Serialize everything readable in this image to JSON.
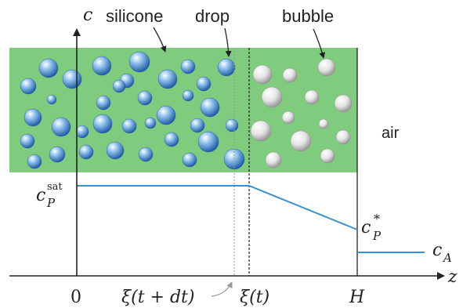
{
  "labels": {
    "c_axis": "c",
    "z_axis": "z",
    "silicone": "silicone",
    "drop": "drop",
    "bubble": "bubble",
    "air": "air",
    "zero": "0",
    "xi_t_dt": "ξ(t + dt)",
    "xi_t": "ξ(t)",
    "H": "H",
    "c_sat_base": "c",
    "c_sat_sub": "P",
    "c_sat_sup": "sat",
    "c_star_base": "c",
    "c_star_sub": "P",
    "c_star_sup": "*",
    "c_A_base": "c",
    "c_A_sub": "A"
  },
  "colors": {
    "silicone": "#7fcc7f",
    "profile_line": "#3a8fd1",
    "axis": "#222222",
    "drop": "#4a90d9",
    "bubble": "#d8d8d8"
  }
}
